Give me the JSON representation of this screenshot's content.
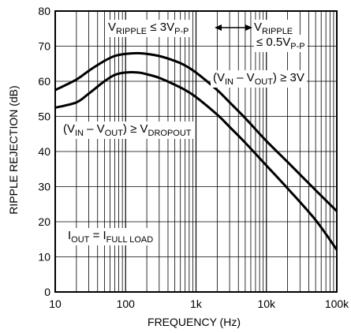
{
  "chart_data": {
    "type": "line",
    "xlabel": "FREQUENCY (Hz)",
    "ylabel": "RIPPLE REJECTION (dB)",
    "x_scale": "log",
    "xlim": [
      10,
      100000
    ],
    "ylim": [
      0,
      80
    ],
    "grid": true,
    "x_ticks": [
      {
        "value": 10,
        "label": "10"
      },
      {
        "value": 100,
        "label": "100"
      },
      {
        "value": 1000,
        "label": "1k"
      },
      {
        "value": 10000,
        "label": "10k"
      },
      {
        "value": 100000,
        "label": "100k"
      }
    ],
    "y_ticks": [
      0,
      10,
      20,
      30,
      40,
      50,
      60,
      70,
      80
    ],
    "series": [
      {
        "x": [
          10,
          20,
          30,
          50,
          70,
          100,
          150,
          200,
          300,
          500,
          700,
          1000,
          2000,
          3000,
          5000,
          10000,
          20000,
          50000,
          100000
        ],
        "y": [
          57.5,
          60.5,
          63,
          65.8,
          67.2,
          67.8,
          68,
          67.8,
          67.2,
          65.8,
          64.5,
          62.5,
          57.5,
          54,
          49.5,
          43,
          37,
          29,
          23
        ]
      },
      {
        "x": [
          10,
          20,
          30,
          50,
          70,
          100,
          150,
          200,
          300,
          500,
          700,
          1000,
          2000,
          3000,
          5000,
          10000,
          20000,
          50000,
          100000
        ],
        "y": [
          52.5,
          54,
          56.5,
          60,
          61.8,
          62.5,
          62.5,
          62,
          61,
          59,
          57.5,
          55.5,
          50.5,
          47,
          42.5,
          36,
          29.5,
          20.5,
          12
        ]
      }
    ],
    "annotations": {
      "ripple_3": {
        "main": "V",
        "sub1": "RIPPLE",
        "rel": " ≤ 3V",
        "sub2": "P-P"
      },
      "ripple_05_line1": {
        "main": "V",
        "sub": "RIPPLE"
      },
      "ripple_05_line2": {
        "main": "≤ 0.5V",
        "sub": "P-P"
      },
      "vin_3v": {
        "p1": "(V",
        "s1": "IN",
        "p2": " – V",
        "s2": "OUT",
        "p3": ") ≥ 3V"
      },
      "vin_dropout": {
        "p1": "(V",
        "s1": "IN",
        "p2": " – V",
        "s2": "OUT",
        "p3": ") ≥ V",
        "s3": "DROPOUT"
      },
      "iout": {
        "p1": "I",
        "s1": "OUT",
        "p2": " = I",
        "s2": "FULL LOAD"
      }
    }
  }
}
